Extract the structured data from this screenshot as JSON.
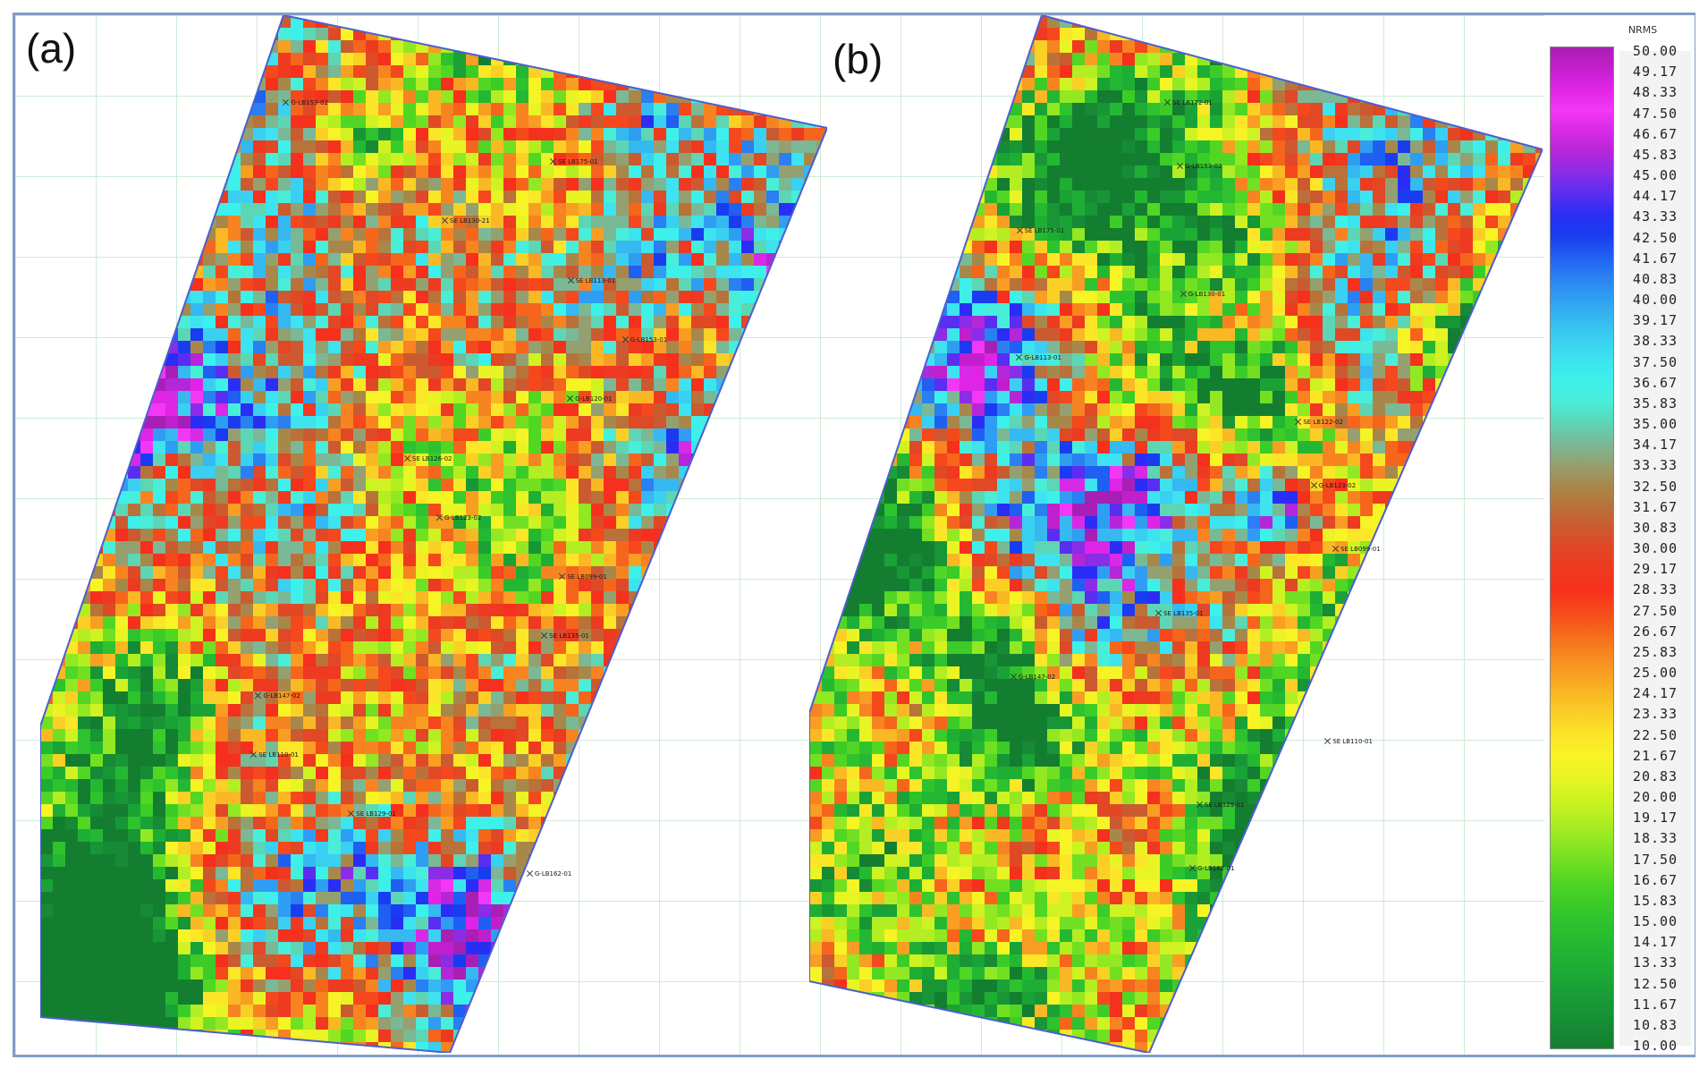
{
  "panels": [
    {
      "label": "(a)",
      "seed": 7,
      "bias": 0.52,
      "wells": [
        "G-LB153-02",
        "SE LB175-01",
        "SE LB130-21",
        "SE LB113-01",
        "G-LB153-01",
        "G-LB120-01",
        "SE LB126-02",
        "G-LB123-02",
        "SE LB099-01",
        "SE LB135-01",
        "G-LB147-02",
        "SE LB110-01",
        "SE LB129-01",
        "G-LB162-01"
      ]
    },
    {
      "label": "(b)",
      "seed": 19,
      "bias": 0.4,
      "wells": [
        "SE LB172-01",
        "G-LB153-02",
        "SE LB175-01",
        "G-LB130-01",
        "G-LB113-01",
        "SE LB122-02",
        "G-LB123-02",
        "SE LB099-01",
        "SE LB135-01",
        "G-LB147-02",
        "SE LB110-01",
        "SE LB129-01",
        "G-LB162-01"
      ]
    }
  ],
  "legend": {
    "title": "NRMS",
    "ticks": [
      "50.00",
      "49.17",
      "48.33",
      "47.50",
      "46.67",
      "45.83",
      "45.00",
      "44.17",
      "43.33",
      "42.50",
      "41.67",
      "40.83",
      "40.00",
      "39.17",
      "38.33",
      "37.50",
      "36.67",
      "35.83",
      "35.00",
      "34.17",
      "33.33",
      "32.50",
      "31.67",
      "30.83",
      "30.00",
      "29.17",
      "28.33",
      "27.50",
      "26.67",
      "25.83",
      "25.00",
      "24.17",
      "23.33",
      "22.50",
      "21.67",
      "20.83",
      "20.00",
      "19.17",
      "18.33",
      "17.50",
      "16.67",
      "15.83",
      "15.00",
      "14.17",
      "13.33",
      "12.50",
      "11.67",
      "10.83",
      "10.00"
    ],
    "colors": [
      "#a81fb5",
      "#c21fcc",
      "#e024e6",
      "#f238f5",
      "#d829e6",
      "#b526d9",
      "#8b2ce6",
      "#5a2ef0",
      "#2a2ef5",
      "#1a3cf0",
      "#1f5ff2",
      "#2a80f0",
      "#2f9ef2",
      "#36b8f0",
      "#3ad0f2",
      "#3de3ef",
      "#3ef0ea",
      "#48eed8",
      "#5cd6b4",
      "#7ab896",
      "#94a070",
      "#a8884a",
      "#b8723a",
      "#cc5a30",
      "#e04826",
      "#ee3a20",
      "#f5301c",
      "#f5481c",
      "#f5661c",
      "#f78420",
      "#f89e22",
      "#f9b824",
      "#fad026",
      "#fbe628",
      "#f7f426",
      "#e8f424",
      "#cff222",
      "#b2ee22",
      "#92e822",
      "#72e022",
      "#52d624",
      "#3ccc28",
      "#2ec22e",
      "#24b832",
      "#1eae34",
      "#1aa236",
      "#189636",
      "#168a34",
      "#147e30"
    ]
  }
}
